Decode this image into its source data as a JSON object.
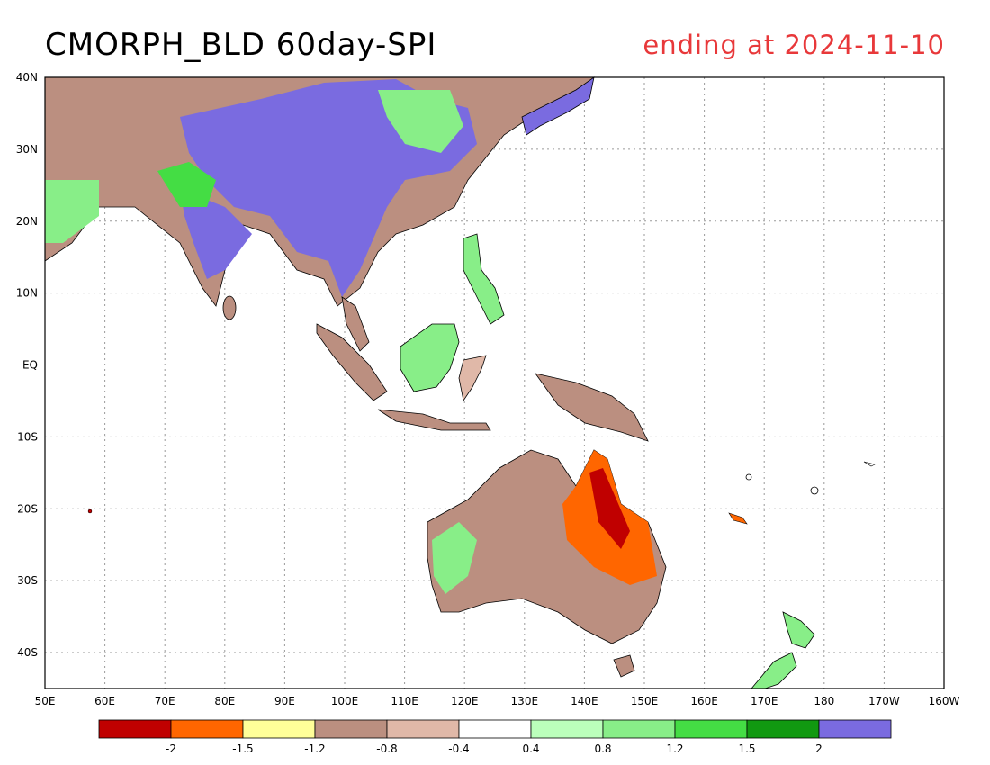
{
  "header": {
    "title": "CMORPH_BLD 60day-SPI",
    "date_label": "ending at 2024-11-10"
  },
  "map": {
    "projection": "lat-lon",
    "lon_range": [
      "50E",
      "160W"
    ],
    "lat_range": [
      "45S",
      "40N"
    ],
    "lon_labels": [
      "50E",
      "60E",
      "70E",
      "80E",
      "90E",
      "100E",
      "110E",
      "120E",
      "130E",
      "140E",
      "150E",
      "160E",
      "170E",
      "180",
      "170W",
      "160W"
    ],
    "lat_labels": [
      "40N",
      "30N",
      "20N",
      "10N",
      "EQ",
      "10S",
      "20S",
      "30S",
      "40S"
    ],
    "grid": "dotted"
  },
  "legend": {
    "colors": [
      "#c00000",
      "#ff6600",
      "#ffff99",
      "#bb8f80",
      "#e0b8a8",
      "#ffffff",
      "#bbffbb",
      "#88ee88",
      "#44dd44",
      "#119911",
      "#7a6be0"
    ],
    "tick_labels": [
      "-2",
      "-1.5",
      "-1.2",
      "-0.8",
      "-0.4",
      "0.4",
      "0.8",
      "1.2",
      "1.5",
      "2"
    ]
  }
}
